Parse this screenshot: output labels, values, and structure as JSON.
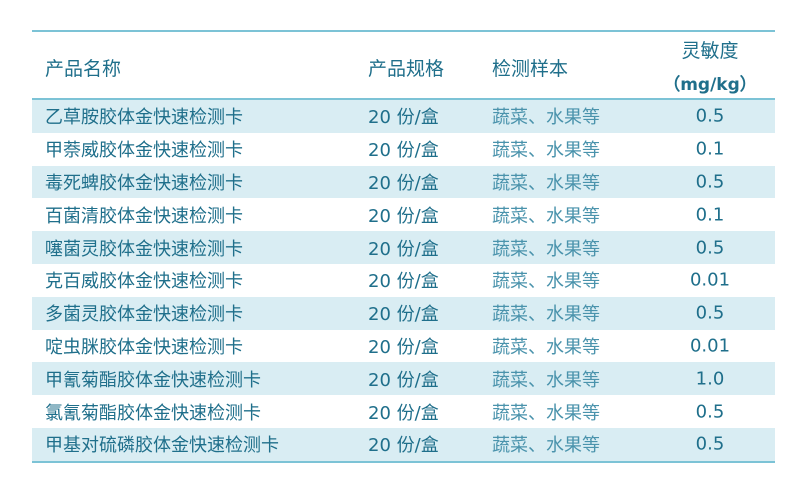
{
  "headers": {
    "name": "产品名称",
    "spec": "产品规格",
    "sample": "检测样本",
    "sensitivity_line1": "灵敏度",
    "sensitivity_line2": "（mg/kg）"
  },
  "rows": [
    {
      "name": "乙草胺胶体金快速检测卡",
      "spec": "20 份/盒",
      "sample": "蔬菜、水果等",
      "sensitivity": "0.5"
    },
    {
      "name": "甲萘威胶体金快速检测卡",
      "spec": "20 份/盒",
      "sample": "蔬菜、水果等",
      "sensitivity": "0.1"
    },
    {
      "name": "毒死蜱胶体金快速检测卡",
      "spec": "20 份/盒",
      "sample": "蔬菜、水果等",
      "sensitivity": "0.5"
    },
    {
      "name": "百菌清胶体金快速检测卡",
      "spec": "20 份/盒",
      "sample": "蔬菜、水果等",
      "sensitivity": "0.1"
    },
    {
      "name": "噻菌灵胶体金快速检测卡",
      "spec": "20 份/盒",
      "sample": "蔬菜、水果等",
      "sensitivity": "0.5"
    },
    {
      "name": "克百威胶体金快速检测卡",
      "spec": "20 份/盒",
      "sample": "蔬菜、水果等",
      "sensitivity": "0.01"
    },
    {
      "name": "多菌灵胶体金快速检测卡",
      "spec": "20 份/盒",
      "sample": "蔬菜、水果等",
      "sensitivity": "0.5"
    },
    {
      "name": "啶虫脒胶体金快速检测卡",
      "spec": "20 份/盒",
      "sample": "蔬菜、水果等",
      "sensitivity": "0.01"
    },
    {
      "name": "甲氰菊酯胶体金快速检测卡",
      "spec": "20 份/盒",
      "sample": "蔬菜、水果等",
      "sensitivity": "1.0"
    },
    {
      "name": "氯氰菊酯胶体金快速检测卡",
      "spec": "20 份/盒",
      "sample": "蔬菜、水果等",
      "sensitivity": "0.5"
    },
    {
      "name": "甲基对硫磷胶体金快速检测卡",
      "spec": "20 份/盒",
      "sample": "蔬菜、水果等",
      "sensitivity": "0.5"
    }
  ]
}
